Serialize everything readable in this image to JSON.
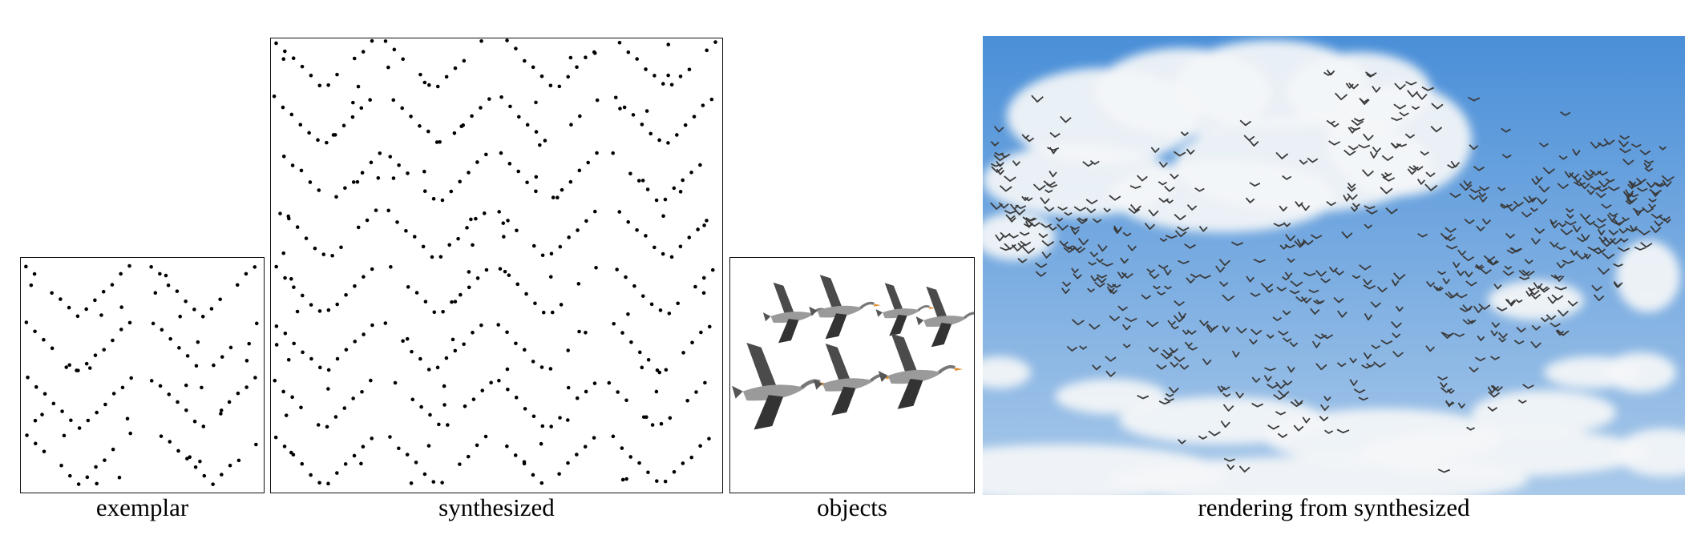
{
  "captions": {
    "exemplar": "exemplar",
    "synthesized": "synthesized",
    "objects": "objects",
    "rendering": "rendering from synthesized"
  },
  "panels": {
    "exemplar": {
      "content": "point-distribution",
      "pattern": "chevron-rows",
      "dot_color": "#000000"
    },
    "synthesized": {
      "content": "point-distribution",
      "pattern": "chevron-rows",
      "dot_color": "#000000"
    },
    "objects": {
      "content": "flying-geese-sprites",
      "count": 7
    },
    "rendering": {
      "content": "flock-of-geese-over-sky",
      "sky_top": "#4a8fd8",
      "sky_bottom": "#a9c9ea",
      "cloud_color": "#f4f6f8",
      "bird_color": "#3a3a3a"
    }
  }
}
